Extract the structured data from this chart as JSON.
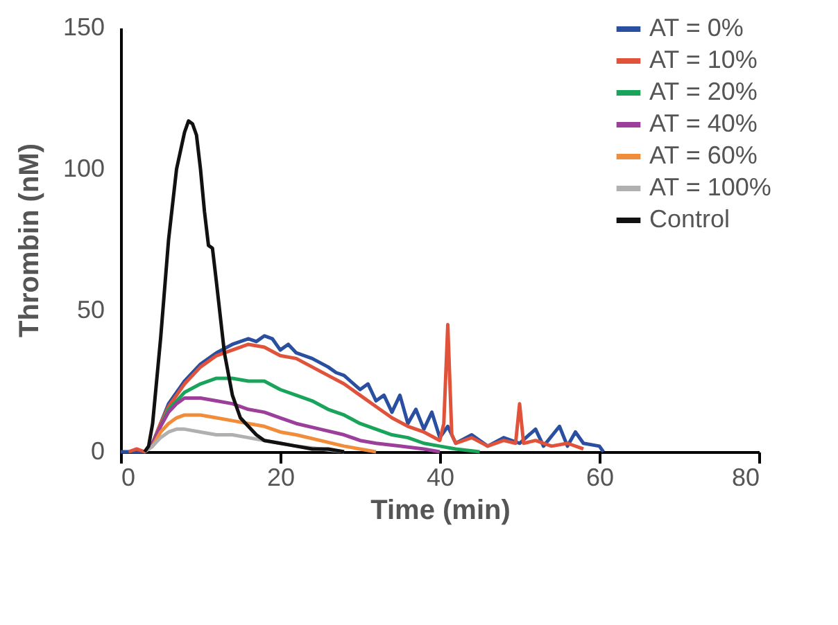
{
  "chart_data": {
    "type": "line",
    "xlabel": "Time (min)",
    "ylabel": "Thrombin (nM)",
    "xlim": [
      0,
      80
    ],
    "xticks": [
      0,
      20,
      40,
      60,
      80
    ],
    "ylim": [
      0,
      150
    ],
    "yticks": [
      0,
      50,
      100,
      150
    ],
    "grid": false,
    "legend": "top right",
    "line_style": "solid",
    "marker": "none",
    "series": [
      {
        "name": "AT = 0%",
        "color": "#2a4fa0",
        "x": [
          0,
          3,
          4,
          5,
          6,
          8,
          10,
          12,
          14,
          15,
          16,
          17,
          18,
          19,
          20,
          21,
          22,
          24,
          26,
          27,
          28,
          30,
          31,
          32,
          33,
          34,
          35,
          36,
          37,
          38,
          39,
          40,
          41,
          42,
          44,
          46,
          48,
          50,
          52,
          53,
          55,
          56,
          57,
          58,
          60,
          60.5
        ],
        "values": [
          0,
          0,
          3,
          10,
          17,
          25,
          31,
          35,
          38,
          39,
          40,
          39,
          41,
          40,
          36,
          38,
          35,
          33,
          30,
          28,
          27,
          22,
          24,
          18,
          20,
          14,
          20,
          10,
          15,
          8,
          14,
          5,
          9,
          3,
          6,
          2,
          5,
          3,
          8,
          2,
          9,
          2,
          7,
          3,
          2,
          0
        ]
      },
      {
        "name": "AT = 10%",
        "color": "#e0533a",
        "x": [
          1,
          2,
          3,
          4,
          5,
          6,
          8,
          10,
          12,
          14,
          16,
          18,
          20,
          22,
          24,
          26,
          28,
          30,
          32,
          34,
          36,
          38,
          40,
          40.5,
          41,
          41.5,
          42,
          44,
          46,
          48,
          49.5,
          50,
          50.5,
          52,
          54,
          56,
          58
        ],
        "values": [
          0,
          1,
          0,
          3,
          10,
          16,
          24,
          30,
          34,
          36,
          38,
          37,
          34,
          33,
          30,
          27,
          24,
          20,
          16,
          12,
          9,
          7,
          4,
          10,
          45,
          6,
          3,
          5,
          2,
          4,
          3,
          17,
          3,
          4,
          2,
          3,
          1
        ]
      },
      {
        "name": "AT = 20%",
        "color": "#1aa35a",
        "x": [
          3,
          4,
          5,
          6,
          8,
          10,
          12,
          14,
          16,
          18,
          20,
          22,
          24,
          26,
          28,
          30,
          32,
          34,
          36,
          38,
          40,
          42,
          45
        ],
        "values": [
          0,
          3,
          9,
          15,
          21,
          24,
          26,
          26,
          25,
          25,
          22,
          20,
          18,
          15,
          13,
          10,
          8,
          6,
          5,
          3,
          2,
          1,
          0
        ]
      },
      {
        "name": "AT = 40%",
        "color": "#9b3f9b",
        "x": [
          3,
          4,
          5,
          6,
          7,
          8,
          10,
          12,
          14,
          16,
          18,
          20,
          22,
          25,
          28,
          30,
          32,
          35,
          38,
          40
        ],
        "values": [
          0,
          3,
          9,
          14,
          17,
          19,
          19,
          18,
          17,
          15,
          14,
          12,
          10,
          8,
          6,
          4,
          3,
          2,
          1,
          0
        ]
      },
      {
        "name": "AT = 60%",
        "color": "#f08c3a",
        "x": [
          3,
          4,
          5,
          6,
          7,
          8,
          10,
          12,
          14,
          16,
          18,
          20,
          22,
          25,
          28,
          30,
          32
        ],
        "values": [
          0,
          2,
          7,
          10,
          12,
          13,
          13,
          12,
          11,
          10,
          9,
          7,
          6,
          4,
          2,
          1,
          0
        ]
      },
      {
        "name": "AT = 100%",
        "color": "#b0b0b0",
        "x": [
          3,
          4,
          5,
          6,
          7,
          8,
          10,
          12,
          14,
          16,
          18,
          20,
          22,
          28
        ],
        "values": [
          0,
          2,
          5,
          7,
          8,
          8,
          7,
          6,
          6,
          5,
          4,
          3,
          2,
          0
        ]
      },
      {
        "name": "Control",
        "color": "#111111",
        "x": [
          3,
          3.5,
          4,
          5,
          6,
          7,
          8,
          8.5,
          9,
          9.5,
          10,
          10.5,
          11,
          11.5,
          12,
          13,
          14,
          15,
          16,
          17,
          18,
          20,
          22,
          24,
          26,
          28
        ],
        "values": [
          0,
          2,
          10,
          40,
          75,
          100,
          113,
          117,
          116,
          112,
          100,
          85,
          73,
          72,
          60,
          35,
          20,
          12,
          9,
          6,
          4,
          3,
          2,
          1,
          1,
          0
        ]
      }
    ]
  }
}
